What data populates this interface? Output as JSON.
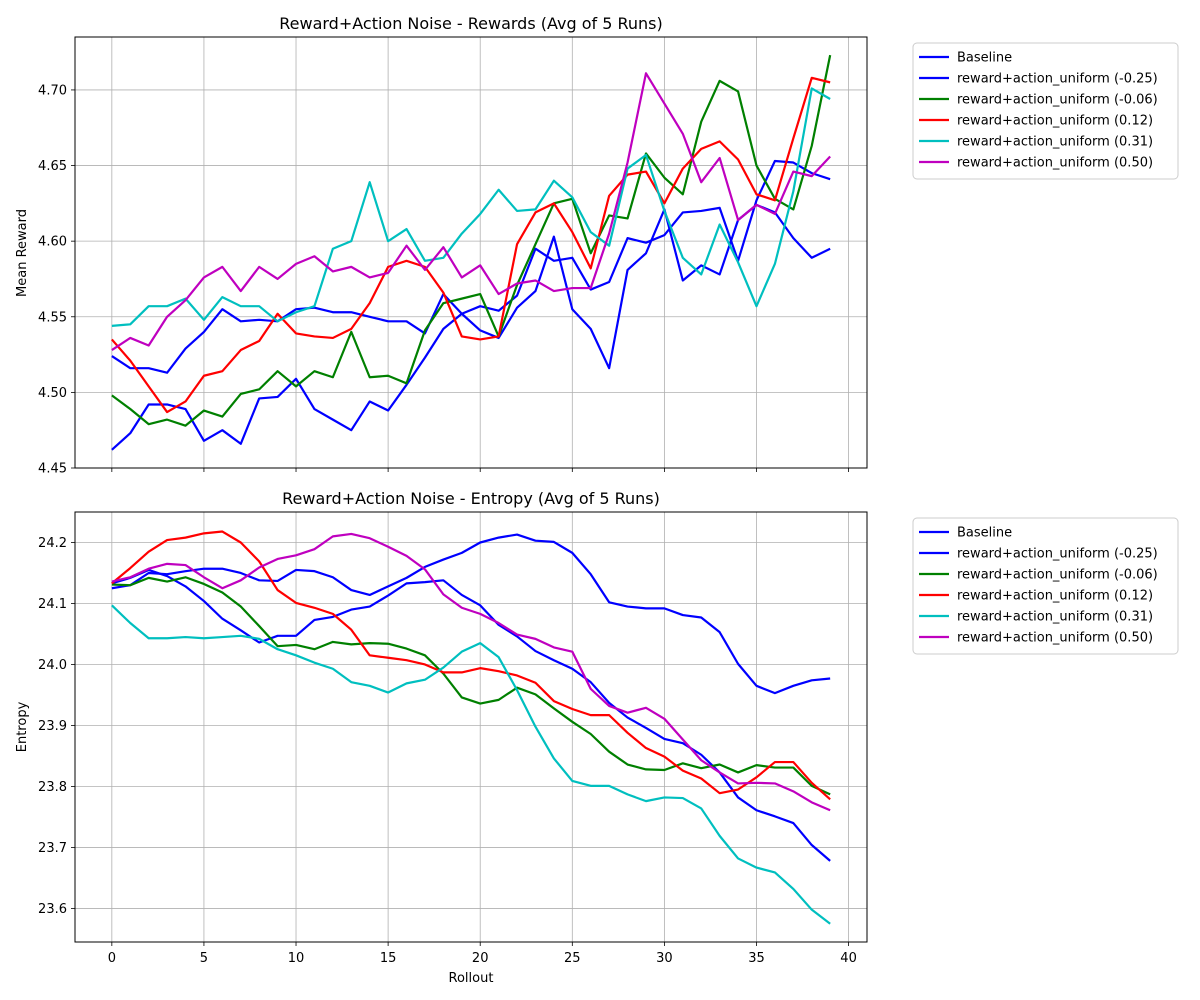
{
  "chart_data": [
    {
      "type": "line",
      "title": "Reward+Action Noise - Rewards (Avg of 5 Runs)",
      "xlabel": "",
      "ylabel": "Mean Reward",
      "xlim": [
        -2,
        41
      ],
      "ylim": [
        4.45,
        4.735
      ],
      "xticks": [
        0,
        5,
        10,
        15,
        20,
        25,
        30,
        35,
        40
      ],
      "yticks": [
        4.45,
        4.5,
        4.55,
        4.6,
        4.65,
        4.7
      ],
      "ytick_labels": [
        "4.45",
        "4.50",
        "4.55",
        "4.60",
        "4.65",
        "4.70"
      ],
      "grid": true,
      "legend_position": "outside-right",
      "series": [
        {
          "name": "Baseline",
          "color": "#0000ff",
          "values": [
            4.524,
            4.516,
            4.516,
            4.513,
            4.529,
            4.54,
            4.555,
            4.547,
            4.548,
            4.547,
            4.555,
            4.556,
            4.553,
            4.553,
            4.55,
            4.547,
            4.547,
            4.539,
            4.565,
            4.552,
            4.557,
            4.554,
            4.564,
            4.595,
            4.587,
            4.589,
            4.568,
            4.573,
            4.602,
            4.599,
            4.604,
            4.619,
            4.62,
            4.622,
            4.587,
            4.627,
            4.653,
            4.652,
            4.645,
            4.641
          ]
        },
        {
          "name": "reward+action_uniform (-0.25)",
          "color": "#0000ff",
          "values": [
            4.462,
            4.473,
            4.492,
            4.492,
            4.489,
            4.468,
            4.475,
            4.466,
            4.496,
            4.497,
            4.509,
            4.489,
            4.482,
            4.475,
            4.494,
            4.488,
            4.505,
            4.523,
            4.542,
            4.552,
            4.541,
            4.536,
            4.556,
            4.567,
            4.603,
            4.555,
            4.542,
            4.516,
            4.581,
            4.592,
            4.621,
            4.574,
            4.584,
            4.578,
            4.614,
            4.624,
            4.619,
            4.602,
            4.589,
            4.595
          ]
        },
        {
          "name": "reward+action_uniform (-0.06)",
          "color": "#008000",
          "values": [
            4.498,
            4.489,
            4.479,
            4.482,
            4.478,
            4.488,
            4.484,
            4.499,
            4.502,
            4.514,
            4.504,
            4.514,
            4.51,
            4.54,
            4.51,
            4.511,
            4.506,
            4.541,
            4.559,
            4.562,
            4.565,
            4.537,
            4.571,
            4.598,
            4.625,
            4.628,
            4.592,
            4.617,
            4.615,
            4.658,
            4.642,
            4.631,
            4.679,
            4.706,
            4.699,
            4.65,
            4.628,
            4.621,
            4.663,
            4.723
          ]
        },
        {
          "name": "reward+action_uniform (0.12)",
          "color": "#ff0000",
          "values": [
            4.535,
            4.521,
            4.504,
            4.487,
            4.494,
            4.511,
            4.514,
            4.528,
            4.534,
            4.552,
            4.539,
            4.537,
            4.536,
            4.542,
            4.559,
            4.583,
            4.587,
            4.583,
            4.566,
            4.537,
            4.535,
            4.537,
            4.598,
            4.619,
            4.625,
            4.606,
            4.582,
            4.63,
            4.644,
            4.646,
            4.625,
            4.648,
            4.661,
            4.666,
            4.654,
            4.631,
            4.627,
            4.668,
            4.708,
            4.705
          ]
        },
        {
          "name": "reward+action_uniform (0.31)",
          "color": "#00bfbf",
          "values": [
            4.544,
            4.545,
            4.557,
            4.557,
            4.562,
            4.548,
            4.563,
            4.557,
            4.557,
            4.547,
            4.553,
            4.557,
            4.595,
            4.6,
            4.639,
            4.6,
            4.608,
            4.587,
            4.589,
            4.605,
            4.618,
            4.634,
            4.62,
            4.621,
            4.64,
            4.629,
            4.606,
            4.597,
            4.648,
            4.657,
            4.62,
            4.589,
            4.578,
            4.611,
            4.586,
            4.557,
            4.585,
            4.633,
            4.701,
            4.694
          ]
        },
        {
          "name": "reward+action_uniform (0.50)",
          "color": "#bf00bf",
          "values": [
            4.528,
            4.536,
            4.531,
            4.55,
            4.561,
            4.576,
            4.583,
            4.567,
            4.583,
            4.575,
            4.585,
            4.59,
            4.58,
            4.583,
            4.576,
            4.579,
            4.597,
            4.581,
            4.596,
            4.576,
            4.584,
            4.565,
            4.572,
            4.574,
            4.567,
            4.569,
            4.569,
            4.605,
            4.652,
            4.711,
            4.691,
            4.671,
            4.639,
            4.655,
            4.614,
            4.624,
            4.618,
            4.646,
            4.643,
            4.656
          ]
        }
      ]
    },
    {
      "type": "line",
      "title": "Reward+Action Noise - Entropy (Avg of 5 Runs)",
      "xlabel": "Rollout",
      "ylabel": "Entropy",
      "xlim": [
        -2,
        41
      ],
      "ylim": [
        23.545,
        24.25
      ],
      "xticks": [
        0,
        5,
        10,
        15,
        20,
        25,
        30,
        35,
        40
      ],
      "yticks": [
        23.6,
        23.7,
        23.8,
        23.9,
        24.0,
        24.1,
        24.2
      ],
      "ytick_labels": [
        "23.6",
        "23.7",
        "23.8",
        "23.9",
        "24.0",
        "24.1",
        "24.2"
      ],
      "grid": true,
      "legend_position": "outside-right",
      "series": [
        {
          "name": "Baseline",
          "color": "#0000ff",
          "values": [
            24.125,
            24.13,
            24.15,
            24.148,
            24.153,
            24.157,
            24.157,
            24.15,
            24.138,
            24.137,
            24.155,
            24.153,
            24.143,
            24.122,
            24.114,
            24.128,
            24.142,
            24.16,
            24.172,
            24.183,
            24.2,
            24.208,
            24.213,
            24.203,
            24.201,
            24.183,
            24.148,
            24.102,
            24.095,
            24.092,
            24.092,
            24.081,
            24.077,
            24.053,
            24.001,
            23.965,
            23.953,
            23.965,
            23.974,
            23.977
          ]
        },
        {
          "name": "reward+action_uniform (-0.25)",
          "color": "#0000ff",
          "values": [
            24.133,
            24.142,
            24.155,
            24.145,
            24.128,
            24.104,
            24.075,
            24.056,
            24.036,
            24.047,
            24.047,
            24.073,
            24.078,
            24.09,
            24.095,
            24.113,
            24.133,
            24.135,
            24.138,
            24.114,
            24.097,
            24.065,
            24.046,
            24.022,
            24.007,
            23.993,
            23.971,
            23.937,
            23.913,
            23.896,
            23.878,
            23.871,
            23.852,
            23.823,
            23.782,
            23.761,
            23.751,
            23.74,
            23.704,
            23.678
          ]
        },
        {
          "name": "reward+action_uniform (-0.06)",
          "color": "#008000",
          "values": [
            24.131,
            24.13,
            24.142,
            24.136,
            24.143,
            24.132,
            24.118,
            24.095,
            24.063,
            24.03,
            24.032,
            24.025,
            24.037,
            24.033,
            24.035,
            24.034,
            24.026,
            24.015,
            23.985,
            23.946,
            23.936,
            23.942,
            23.962,
            23.951,
            23.928,
            23.906,
            23.886,
            23.857,
            23.836,
            23.828,
            23.827,
            23.838,
            23.83,
            23.836,
            23.823,
            23.835,
            23.831,
            23.831,
            23.801,
            23.787
          ]
        },
        {
          "name": "reward+action_uniform (0.12)",
          "color": "#ff0000",
          "values": [
            24.133,
            24.158,
            24.185,
            24.204,
            24.208,
            24.215,
            24.218,
            24.2,
            24.169,
            24.122,
            24.101,
            24.093,
            24.083,
            24.057,
            24.015,
            24.011,
            24.007,
            24.0,
            23.987,
            23.987,
            23.994,
            23.989,
            23.982,
            23.97,
            23.94,
            23.927,
            23.917,
            23.917,
            23.888,
            23.863,
            23.849,
            23.826,
            23.813,
            23.789,
            23.795,
            23.815,
            23.84,
            23.84,
            23.806,
            23.779
          ]
        },
        {
          "name": "reward+action_uniform (0.31)",
          "color": "#00bfbf",
          "values": [
            24.097,
            24.068,
            24.043,
            24.043,
            24.045,
            24.043,
            24.045,
            24.047,
            24.042,
            24.025,
            24.015,
            24.003,
            23.993,
            23.971,
            23.965,
            23.954,
            23.969,
            23.975,
            23.995,
            24.021,
            24.035,
            24.012,
            23.958,
            23.898,
            23.846,
            23.809,
            23.801,
            23.801,
            23.787,
            23.776,
            23.782,
            23.781,
            23.764,
            23.719,
            23.682,
            23.667,
            23.659,
            23.632,
            23.598,
            23.575
          ]
        },
        {
          "name": "reward+action_uniform (0.50)",
          "color": "#bf00bf",
          "values": [
            24.136,
            24.143,
            24.157,
            24.165,
            24.163,
            24.143,
            24.125,
            24.138,
            24.159,
            24.173,
            24.179,
            24.189,
            24.21,
            24.214,
            24.207,
            24.193,
            24.178,
            24.156,
            24.115,
            24.093,
            24.083,
            24.068,
            24.049,
            24.042,
            24.028,
            24.021,
            23.96,
            23.932,
            23.921,
            23.929,
            23.911,
            23.877,
            23.843,
            23.823,
            23.805,
            23.806,
            23.805,
            23.792,
            23.774,
            23.761
          ]
        }
      ]
    }
  ]
}
